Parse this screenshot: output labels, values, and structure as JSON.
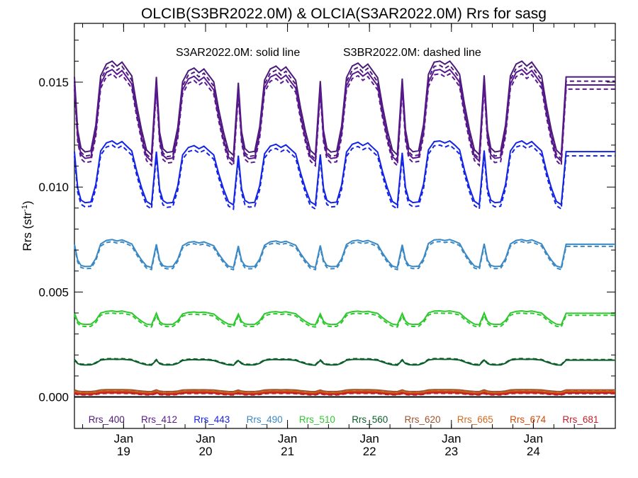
{
  "chart_data": {
    "type": "line",
    "title": "OLCIB(S3BR2022.0M) & OLCIA(S3AR2022.0M)  Rrs for sasg",
    "note_solid": "S3AR2022.0M: solid line",
    "note_dashed": "S3BR2022.0M: dashed line",
    "ylabel_main": "Rrs (str",
    "ylabel_sup": "-1",
    "ylabel_close": ")",
    "ylim": [
      -0.0015,
      0.0178
    ],
    "xlim": [
      0,
      6.6
    ],
    "yticks": [
      {
        "value": 0.0,
        "label": "0.000"
      },
      {
        "value": 0.005,
        "label": "0.005"
      },
      {
        "value": 0.01,
        "label": "0.010"
      },
      {
        "value": 0.015,
        "label": "0.015"
      }
    ],
    "xticks": [
      {
        "value": 0.6,
        "month": "Jan",
        "day": "19"
      },
      {
        "value": 1.6,
        "month": "Jan",
        "day": "20"
      },
      {
        "value": 2.6,
        "month": "Jan",
        "day": "21"
      },
      {
        "value": 3.6,
        "month": "Jan",
        "day": "22"
      },
      {
        "value": 4.6,
        "month": "Jan",
        "day": "23"
      },
      {
        "value": 5.6,
        "month": "Jan",
        "day": "24"
      }
    ],
    "pattern_x": [
      0,
      0.04,
      0.08,
      0.13,
      0.2,
      0.26,
      0.32,
      0.39,
      0.46,
      0.52,
      0.58,
      0.64,
      0.7,
      0.76,
      0.82,
      0.88,
      0.94,
      1.0
    ],
    "pattern_shape": [
      0.84,
      0.3,
      0.12,
      0.08,
      0.09,
      0.35,
      0.85,
      0.97,
      1.0,
      0.95,
      0.99,
      0.92,
      0.85,
      0.55,
      0.3,
      0.1,
      0.05,
      0.84
    ],
    "day_offsets": [
      0,
      1,
      2,
      3,
      4,
      5
    ],
    "day_amp_scale": [
      1.0,
      0.93,
      0.95,
      0.98,
      1.02,
      1.0
    ],
    "series": [
      {
        "name": "Rrs_400",
        "color": "#4B1A7A",
        "low": 0.0113,
        "high": 0.016,
        "dash_offset": -0.0002
      },
      {
        "name": "Rrs_412",
        "color": "#5A1890",
        "low": 0.011,
        "high": 0.0156,
        "dash_offset": -0.0002
      },
      {
        "name": "Rrs_443",
        "color": "#1424E6",
        "low": 0.009,
        "high": 0.0122,
        "dash_offset": -0.0002
      },
      {
        "name": "Rrs_490",
        "color": "#3A88C4",
        "low": 0.0061,
        "high": 0.0075,
        "dash_offset": -0.0001
      },
      {
        "name": "Rrs_510",
        "color": "#2DC82D",
        "low": 0.0034,
        "high": 0.0041,
        "dash_offset": -0.0001
      },
      {
        "name": "Rrs_560",
        "color": "#0B5E2A",
        "low": 0.0015,
        "high": 0.0018,
        "dash_offset": 3e-05
      },
      {
        "name": "Rrs_620",
        "color": "#A0522D",
        "low": 0.00025,
        "high": 0.00035,
        "dash_offset": -5e-05
      },
      {
        "name": "Rrs_665",
        "color": "#D2691E",
        "low": 0.00018,
        "high": 0.00028,
        "dash_offset": -4e-05
      },
      {
        "name": "Rrs_674",
        "color": "#D04A0A",
        "low": 0.00015,
        "high": 0.00025,
        "dash_offset": -4e-05
      },
      {
        "name": "Rrs_681",
        "color": "#C0202A",
        "low": 0.00012,
        "high": 0.0002,
        "dash_offset": -3e-05
      }
    ]
  }
}
